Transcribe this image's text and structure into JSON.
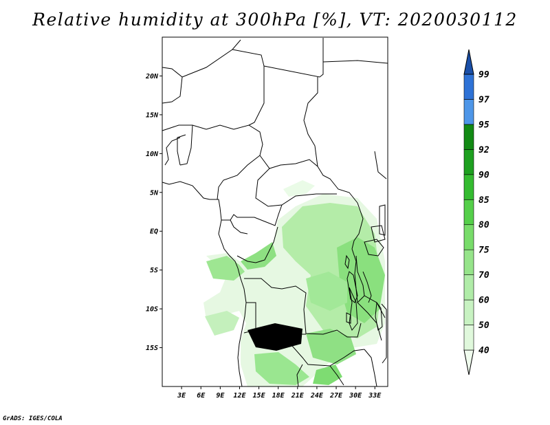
{
  "title": "Relative humidity at 300hPa [%], VT: 2020030112",
  "credit": "GrADS: IGES/COLA",
  "chart_data": {
    "type": "map",
    "variable": "Relative humidity at 300hPa",
    "units": "%",
    "valid_time": "2020030112",
    "lon_range": [
      0,
      35
    ],
    "lat_range": [
      -20,
      25
    ],
    "lon_ticks": [
      "3E",
      "6E",
      "9E",
      "12E",
      "15E",
      "18E",
      "21E",
      "24E",
      "27E",
      "30E",
      "33E"
    ],
    "lat_ticks": [
      "20N",
      "15N",
      "10N",
      "5N",
      "EQ",
      "5S",
      "10S",
      "15S"
    ],
    "colorbar": {
      "levels": [
        "40",
        "50",
        "60",
        "70",
        "75",
        "80",
        "85",
        "90",
        "92",
        "95",
        "97",
        "99"
      ],
      "colors": [
        "#f0fcee",
        "#e0f8dc",
        "#c8f2c2",
        "#b0eca8",
        "#96e48a",
        "#78dc6a",
        "#55cf4a",
        "#34bb30",
        "#1ea020",
        "#128a14",
        "#4e96e8",
        "#2e72d6",
        "#1a4fa8"
      ]
    }
  }
}
